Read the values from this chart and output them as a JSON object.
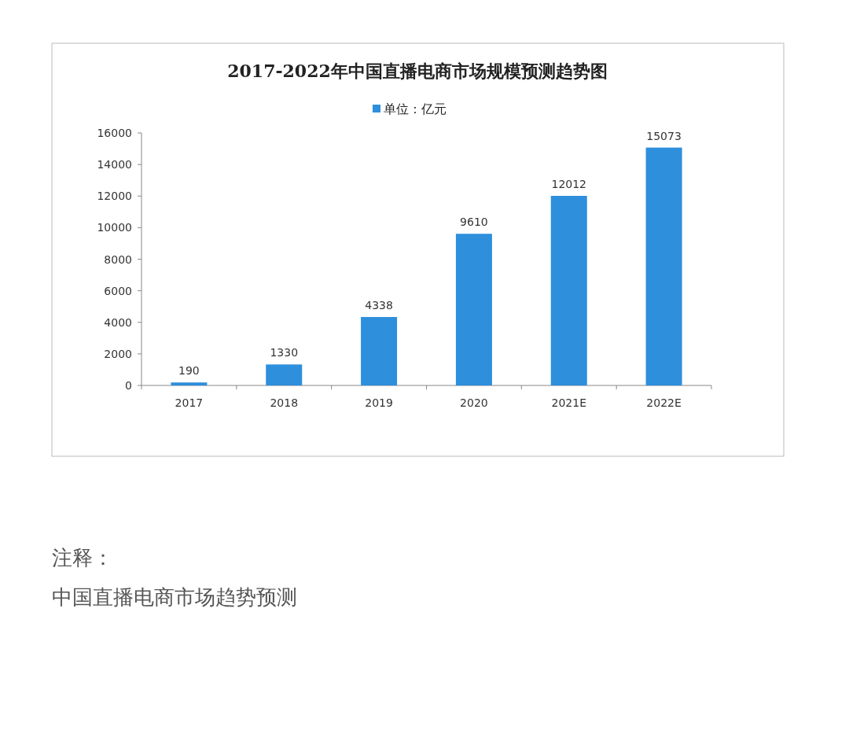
{
  "chart_data": {
    "type": "bar",
    "title": "2017-2022年中国直播电商市场规模预测趋势图",
    "categories": [
      "2017",
      "2018",
      "2019",
      "2020",
      "2021E",
      "2022E"
    ],
    "series": [
      {
        "name": "单位：亿元",
        "color": "#2e8fdc",
        "values": [
          190,
          1330,
          4338,
          9610,
          12012,
          15073
        ]
      }
    ],
    "ylim": [
      0,
      16000
    ],
    "yticks": [
      0,
      2000,
      4000,
      6000,
      8000,
      10000,
      12000,
      14000,
      16000
    ],
    "data_labels": true,
    "legend": "top",
    "grid": false,
    "annotations": [
      "注释：",
      "中国直播电商市场趋势预测"
    ]
  }
}
